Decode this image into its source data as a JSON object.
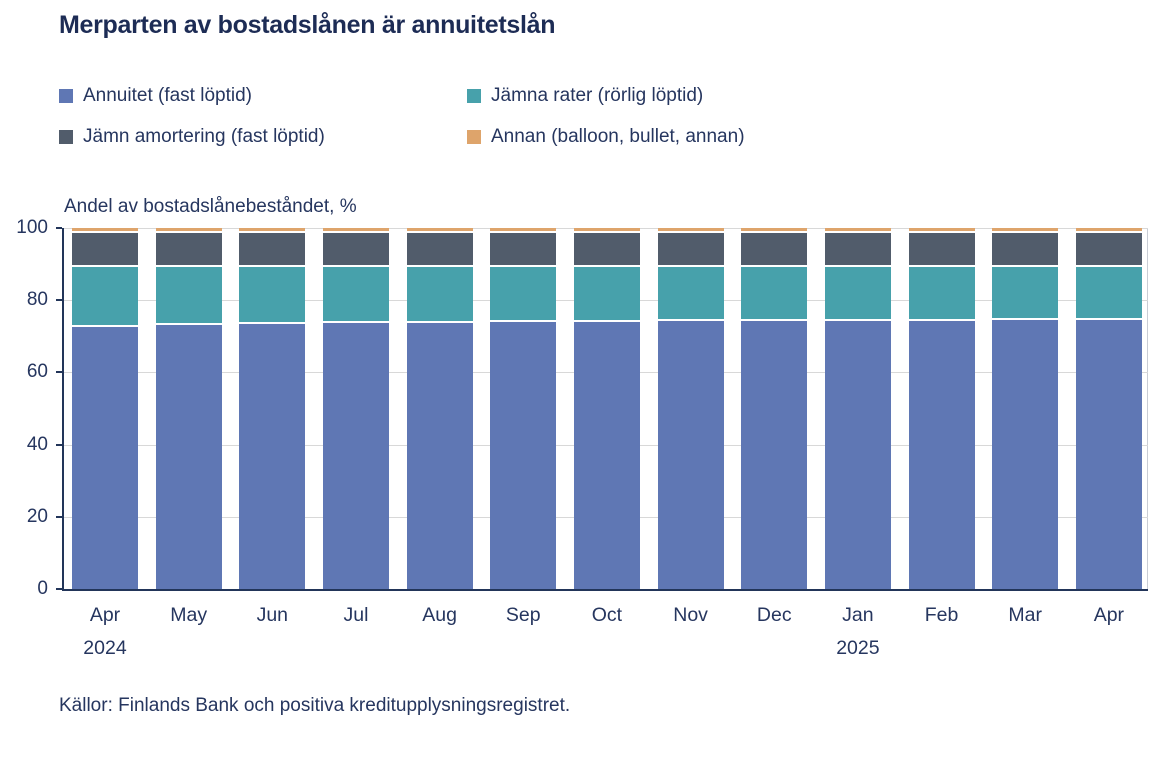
{
  "title": "Merparten av bostadslånen är annuitetslån",
  "axis_title": "Andel av bostadslånebeståndet, %",
  "source": "Källor: Finlands Bank och positiva kreditupplysningsregistret.",
  "colors": {
    "title_text": "#1d2c55",
    "body_text": "#26365f",
    "axis_line": "#223559",
    "gridline": "#d8d8d8",
    "plot_right_border": "#c9cdd5",
    "background": "#ffffff"
  },
  "chart_data": {
    "type": "bar",
    "stacked": true,
    "title": "Merparten av bostadslånen är annuitetslån",
    "ylabel": "Andel av bostadslånebeståndet, %",
    "xlabel": "",
    "ylim": [
      0,
      100
    ],
    "yticks": [
      0,
      20,
      40,
      60,
      80,
      100
    ],
    "grid": true,
    "legend_position": "top-left",
    "categories": [
      "Apr",
      "May",
      "Jun",
      "Jul",
      "Aug",
      "Sep",
      "Oct",
      "Nov",
      "Dec",
      "Jan",
      "Feb",
      "Mar",
      "Apr"
    ],
    "category_years": [
      "2024",
      "",
      "",
      "",
      "",
      "",
      "",
      "",
      "",
      "2025",
      "",
      "",
      ""
    ],
    "series": [
      {
        "name": "Annuitet (fast löptid)",
        "color": "#5f77b4",
        "values": [
          72.7,
          73.2,
          73.3,
          73.6,
          73.7,
          73.9,
          74.0,
          74.1,
          74.2,
          74.2,
          74.3,
          74.4,
          74.5
        ]
      },
      {
        "name": "Jämna rater (rörlig löptid)",
        "color": "#47a1ab",
        "values": [
          16.4,
          15.9,
          15.8,
          15.5,
          15.4,
          15.2,
          15.1,
          15.0,
          14.9,
          14.9,
          14.8,
          14.7,
          14.6
        ]
      },
      {
        "name": "Jämn amortering (fast löptid)",
        "color": "#515c6b",
        "values": [
          9.4,
          9.4,
          9.4,
          9.4,
          9.4,
          9.4,
          9.4,
          9.4,
          9.4,
          9.4,
          9.4,
          9.4,
          9.4
        ]
      },
      {
        "name": "Annan (balloon, bullet, annan)",
        "color": "#dea46b",
        "values": [
          1.5,
          1.5,
          1.5,
          1.5,
          1.5,
          1.5,
          1.5,
          1.5,
          1.5,
          1.5,
          1.5,
          1.5,
          1.5
        ]
      }
    ],
    "source": "Källor: Finlands Bank och positiva kreditupplysningsregistret."
  }
}
